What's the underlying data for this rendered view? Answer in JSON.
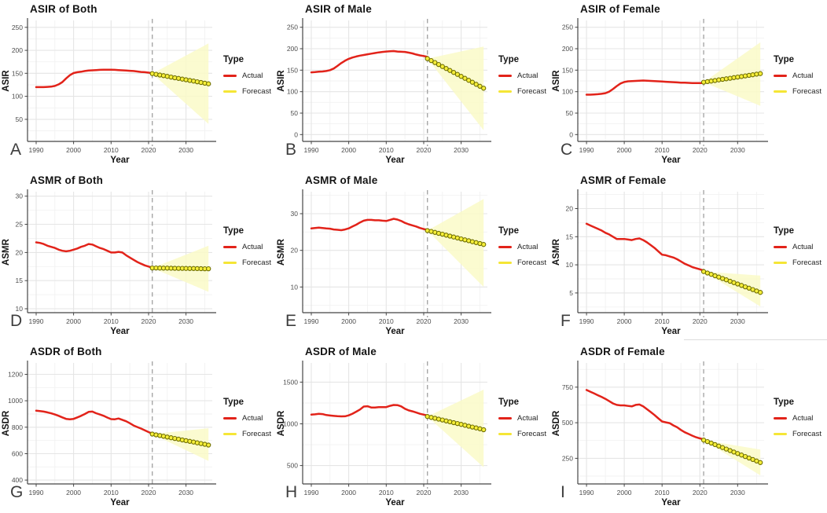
{
  "legend": {
    "title": "Type",
    "items": [
      {
        "label": "Actual",
        "color": "#e2231a"
      },
      {
        "label": "Forecast",
        "color": "#f5e636"
      }
    ]
  },
  "style": {
    "band_fill": "#fafac8",
    "point_fill": "#f7ef3a",
    "point_stroke": "#6e6e00",
    "vline_color": "#a6a6a6",
    "grid_major": "#e5e5e5",
    "grid_minor": "#f2f2f2",
    "spine_color": "#454545",
    "tick_label_color": "#4d4d4d"
  },
  "chart_data": [
    {
      "letter": "A",
      "title": "ASIR of Both",
      "type": "line",
      "xlabel": "Year",
      "ylabel": "ASIR",
      "xlim": [
        1987.7,
        2037
      ],
      "ylim": [
        2,
        265
      ],
      "xticks": [
        1990,
        2000,
        2010,
        2020,
        2030
      ],
      "yticks": [
        50,
        100,
        150,
        200,
        250
      ],
      "vline_x": 2021,
      "series": [
        {
          "name": "Actual",
          "type": "line",
          "color": "#e2231a",
          "x0": 1990,
          "y": [
            120,
            120,
            120,
            120.5,
            121,
            122.5,
            126,
            131,
            139,
            146,
            150.5,
            152.5,
            153.5,
            155,
            156,
            156.5,
            157,
            157.5,
            158,
            158,
            158,
            157.5,
            157,
            156.5,
            156,
            155.5,
            155,
            154,
            153,
            152.5,
            151.5,
            150.5
          ]
        },
        {
          "name": "Forecast",
          "type": "points",
          "fill": "#f7ef3a",
          "stroke": "#6e6e00",
          "x0": 2021,
          "y": [
            149.3,
            147.8,
            146.3,
            144.9,
            143.4,
            141.9,
            140.4,
            139,
            137.5,
            136,
            134.5,
            133.1,
            131.6,
            130.1,
            128.6,
            127.1
          ]
        }
      ],
      "band": {
        "x": [
          2021,
          2036
        ],
        "lower": [
          149.3,
          40
        ],
        "upper": [
          149.3,
          215
        ],
        "color": "#fafac8"
      }
    },
    {
      "letter": "B",
      "title": "ASIR of Male",
      "type": "line",
      "xlabel": "Year",
      "ylabel": "ASIR",
      "xlim": [
        1987.7,
        2037
      ],
      "ylim": [
        -16,
        266
      ],
      "xticks": [
        1990,
        2000,
        2010,
        2020,
        2030
      ],
      "yticks": [
        0,
        50,
        100,
        150,
        200,
        250
      ],
      "vline_x": 2021,
      "series": [
        {
          "name": "Actual",
          "type": "line",
          "color": "#e2231a",
          "x0": 1990,
          "y": [
            145,
            145.5,
            146.5,
            147,
            148,
            150,
            154,
            160,
            166.5,
            172,
            176.5,
            179.5,
            182,
            184,
            185.5,
            187,
            188.5,
            190,
            191.5,
            192.5,
            193.5,
            194,
            194.5,
            193.5,
            193,
            192.5,
            191,
            189,
            186.5,
            184.5,
            183,
            181
          ]
        },
        {
          "name": "Forecast",
          "type": "points",
          "fill": "#f7ef3a",
          "stroke": "#6e6e00",
          "x0": 2021,
          "y": [
            177,
            172.4,
            167.8,
            163.2,
            158.6,
            154,
            149.4,
            144.8,
            140.2,
            135.6,
            131,
            126.4,
            121.8,
            117.2,
            112.6,
            108
          ]
        }
      ],
      "band": {
        "x": [
          2021,
          2036
        ],
        "lower": [
          177,
          10
        ],
        "upper": [
          177,
          205
        ],
        "color": "#fafac8"
      }
    },
    {
      "letter": "C",
      "title": "ASIR of Female",
      "type": "line",
      "xlabel": "Year",
      "ylabel": "ASIR",
      "xlim": [
        1987.7,
        2037
      ],
      "ylim": [
        -16,
        266
      ],
      "xticks": [
        1990,
        2000,
        2010,
        2020,
        2030
      ],
      "yticks": [
        0,
        50,
        100,
        150,
        200,
        250
      ],
      "vline_x": 2021,
      "series": [
        {
          "name": "Actual",
          "type": "line",
          "color": "#e2231a",
          "x0": 1990,
          "y": [
            93,
            93,
            93.5,
            94,
            95,
            96.5,
            100,
            106,
            113,
            119,
            122.5,
            124,
            124.5,
            125,
            125.5,
            126,
            125.5,
            125,
            124.5,
            124,
            123.5,
            123,
            122.5,
            122,
            121.5,
            121,
            121,
            120.5,
            120,
            120,
            120,
            120
          ]
        },
        {
          "name": "Forecast",
          "type": "points",
          "fill": "#f7ef3a",
          "stroke": "#6e6e00",
          "x0": 2021,
          "y": [
            122,
            123.3,
            124.7,
            126,
            127.3,
            128.7,
            130,
            131.3,
            132.7,
            134,
            135.3,
            136.7,
            138,
            139.3,
            140.7,
            142
          ]
        }
      ],
      "band": {
        "x": [
          2021,
          2036
        ],
        "lower": [
          122,
          67
        ],
        "upper": [
          122,
          215
        ],
        "color": "#fafac8"
      }
    },
    {
      "letter": "D",
      "title": "ASMR of Both",
      "type": "line",
      "xlabel": "Year",
      "ylabel": "ASMR",
      "xlim": [
        1987.7,
        2037
      ],
      "ylim": [
        9.3,
        30.8
      ],
      "xticks": [
        1990,
        2000,
        2010,
        2020,
        2030
      ],
      "yticks": [
        10,
        15,
        20,
        25,
        30
      ],
      "vline_x": 2021,
      "series": [
        {
          "name": "Actual",
          "type": "line",
          "color": "#e2231a",
          "x0": 1990,
          "y": [
            21.8,
            21.7,
            21.5,
            21.2,
            21.0,
            20.8,
            20.5,
            20.3,
            20.2,
            20.3,
            20.5,
            20.7,
            21.0,
            21.2,
            21.5,
            21.4,
            21.1,
            20.8,
            20.6,
            20.3,
            20.0,
            20.0,
            20.1,
            20.0,
            19.5,
            19.1,
            18.7,
            18.3,
            18.0,
            17.7,
            17.5,
            17.3
          ]
        },
        {
          "name": "Forecast",
          "type": "points",
          "fill": "#f7ef3a",
          "stroke": "#6e6e00",
          "x0": 2021,
          "y": [
            17.25,
            17.24,
            17.23,
            17.22,
            17.21,
            17.2,
            17.19,
            17.18,
            17.17,
            17.16,
            17.15,
            17.14,
            17.13,
            17.12,
            17.11,
            17.1
          ]
        }
      ],
      "band": {
        "x": [
          2021,
          2036
        ],
        "lower": [
          17.25,
          13
        ],
        "upper": [
          17.25,
          21.2
        ],
        "color": "#fafac8"
      }
    },
    {
      "letter": "E",
      "title": "ASMR of Male",
      "type": "line",
      "xlabel": "Year",
      "ylabel": "ASMR",
      "xlim": [
        1987.7,
        2037
      ],
      "ylim": [
        3,
        36
      ],
      "xticks": [
        1990,
        2000,
        2010,
        2020,
        2030
      ],
      "yticks": [
        10,
        20,
        30
      ],
      "vline_x": 2021,
      "series": [
        {
          "name": "Actual",
          "type": "line",
          "color": "#e2231a",
          "x0": 1990,
          "y": [
            26.0,
            26.1,
            26.2,
            26.1,
            26.0,
            25.9,
            25.7,
            25.6,
            25.5,
            25.7,
            26.0,
            26.5,
            27.0,
            27.6,
            28.1,
            28.3,
            28.3,
            28.2,
            28.2,
            28.1,
            28.0,
            28.3,
            28.6,
            28.4,
            28.0,
            27.5,
            27.1,
            26.8,
            26.5,
            26.1,
            25.8,
            25.6
          ]
        },
        {
          "name": "Forecast",
          "type": "points",
          "fill": "#f7ef3a",
          "stroke": "#6e6e00",
          "x0": 2021,
          "y": [
            25.4,
            25.15,
            24.9,
            24.65,
            24.4,
            24.14,
            23.89,
            23.64,
            23.38,
            23.13,
            22.87,
            22.62,
            22.36,
            22.11,
            21.85,
            21.6
          ]
        }
      ],
      "band": {
        "x": [
          2021,
          2036
        ],
        "lower": [
          25.4,
          10
        ],
        "upper": [
          25.4,
          34
        ],
        "color": "#fafac8"
      }
    },
    {
      "letter": "F",
      "title": "ASMR of Female",
      "type": "line",
      "xlabel": "Year",
      "ylabel": "ASMR",
      "xlim": [
        1987.7,
        2037
      ],
      "ylim": [
        1.5,
        23
      ],
      "xticks": [
        1990,
        2000,
        2010,
        2020,
        2030
      ],
      "yticks": [
        5,
        10,
        15,
        20
      ],
      "vline_x": 2021,
      "series": [
        {
          "name": "Actual",
          "type": "line",
          "color": "#e2231a",
          "x0": 1990,
          "y": [
            17.3,
            17.0,
            16.7,
            16.4,
            16.1,
            15.7,
            15.4,
            15.0,
            14.6,
            14.6,
            14.6,
            14.5,
            14.4,
            14.6,
            14.7,
            14.4,
            14.0,
            13.5,
            13.0,
            12.4,
            11.8,
            11.7,
            11.5,
            11.3,
            11.0,
            10.6,
            10.2,
            9.9,
            9.6,
            9.4,
            9.2,
            9.0
          ]
        },
        {
          "name": "Forecast",
          "type": "points",
          "fill": "#f7ef3a",
          "stroke": "#6e6e00",
          "x0": 2021,
          "y": [
            8.8,
            8.55,
            8.31,
            8.06,
            7.82,
            7.57,
            7.33,
            7.08,
            6.84,
            6.59,
            6.34,
            6.1,
            5.85,
            5.61,
            5.36,
            5.1
          ]
        }
      ],
      "band": {
        "x": [
          2021,
          2036
        ],
        "lower": [
          8.8,
          2.6
        ],
        "upper": [
          8.8,
          8.1
        ],
        "color": "#fafac8"
      }
    },
    {
      "letter": "G",
      "title": "ASDR of Both",
      "type": "line",
      "xlabel": "Year",
      "ylabel": "ASDR",
      "xlim": [
        1987.7,
        2037
      ],
      "ylim": [
        371,
        1286
      ],
      "xticks": [
        1990,
        2000,
        2010,
        2020,
        2030
      ],
      "yticks": [
        400,
        600,
        800,
        1000,
        1200
      ],
      "vline_x": 2021,
      "series": [
        {
          "name": "Actual",
          "type": "line",
          "color": "#e2231a",
          "x0": 1990,
          "y": [
            925,
            922,
            918,
            912,
            905,
            896,
            886,
            874,
            863,
            860,
            863,
            874,
            886,
            900,
            916,
            918,
            906,
            896,
            886,
            873,
            861,
            860,
            866,
            856,
            845,
            830,
            813,
            801,
            790,
            776,
            763,
            752
          ]
        },
        {
          "name": "Forecast",
          "type": "points",
          "fill": "#f7ef3a",
          "stroke": "#6e6e00",
          "x0": 2021,
          "y": [
            748,
            742.5,
            737,
            731.5,
            726,
            720.5,
            715,
            709.5,
            704,
            698.5,
            693,
            687.5,
            682,
            676.5,
            671,
            665
          ]
        }
      ],
      "band": {
        "x": [
          2021,
          2036
        ],
        "lower": [
          748,
          545
        ],
        "upper": [
          748,
          792
        ],
        "color": "#fafac8"
      }
    },
    {
      "letter": "H",
      "title": "ASDR of Male",
      "type": "line",
      "xlabel": "Year",
      "ylabel": "ASDR",
      "xlim": [
        1987.7,
        2037
      ],
      "ylim": [
        280,
        1730
      ],
      "xticks": [
        1990,
        2000,
        2010,
        2020,
        2030
      ],
      "yticks": [
        500,
        1000,
        1500
      ],
      "vline_x": 2021,
      "series": [
        {
          "name": "Actual",
          "type": "line",
          "color": "#e2231a",
          "x0": 1990,
          "y": [
            1110,
            1114,
            1120,
            1117,
            1106,
            1100,
            1095,
            1092,
            1090,
            1091,
            1102,
            1122,
            1146,
            1172,
            1207,
            1211,
            1196,
            1196,
            1200,
            1200,
            1201,
            1216,
            1226,
            1224,
            1209,
            1181,
            1161,
            1150,
            1136,
            1121,
            1110,
            1100
          ]
        },
        {
          "name": "Forecast",
          "type": "points",
          "fill": "#f7ef3a",
          "stroke": "#6e6e00",
          "x0": 2021,
          "y": [
            1088,
            1077.5,
            1067,
            1056.5,
            1046,
            1035.5,
            1025,
            1014.5,
            1004,
            993.5,
            983,
            972.5,
            962,
            951.5,
            941,
            930
          ]
        }
      ],
      "band": {
        "x": [
          2021,
          2036
        ],
        "lower": [
          1088,
          480
        ],
        "upper": [
          1088,
          1410
        ],
        "color": "#fafac8"
      }
    },
    {
      "letter": "I",
      "title": "ASDR of Female",
      "type": "line",
      "xlabel": "Year",
      "ylabel": "ASDR",
      "xlim": [
        1987.7,
        2037
      ],
      "ylim": [
        70,
        920
      ],
      "xticks": [
        1990,
        2000,
        2010,
        2020,
        2030
      ],
      "yticks": [
        250,
        500,
        750
      ],
      "vline_x": 2021,
      "series": [
        {
          "name": "Actual",
          "type": "line",
          "color": "#e2231a",
          "x0": 1990,
          "y": [
            730,
            718,
            706,
            693,
            681,
            668,
            652,
            636,
            625,
            622,
            622,
            618,
            615,
            625,
            628,
            615,
            595,
            575,
            554,
            531,
            509,
            503,
            497,
            481,
            468,
            449,
            433,
            421,
            409,
            398,
            390,
            383
          ]
        },
        {
          "name": "Forecast",
          "type": "points",
          "fill": "#f7ef3a",
          "stroke": "#6e6e00",
          "x0": 2021,
          "y": [
            378,
            367.5,
            357,
            346.5,
            336,
            325.5,
            315,
            304.5,
            294,
            283.5,
            273,
            262.5,
            252,
            241.5,
            231,
            220
          ]
        }
      ],
      "band": {
        "x": [
          2021,
          2036
        ],
        "lower": [
          378,
          130
        ],
        "upper": [
          378,
          312
        ],
        "color": "#fafac8"
      }
    }
  ]
}
